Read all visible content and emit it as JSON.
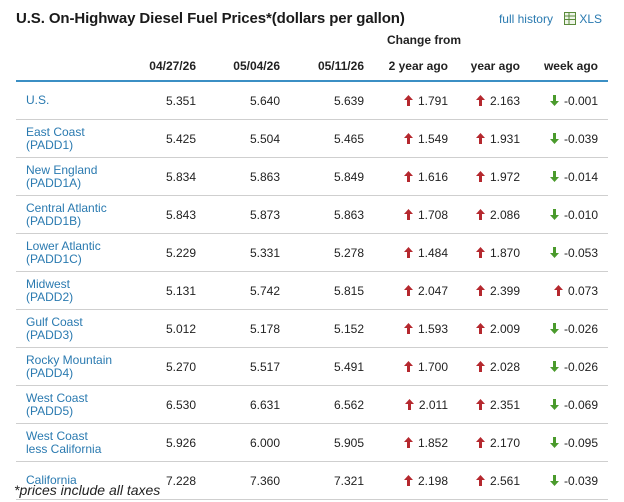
{
  "header": {
    "title": "U.S. On-Highway Diesel Fuel Prices*(dollars per gallon)",
    "full_history_label": "full history",
    "xls_label": "XLS"
  },
  "table": {
    "change_from_label": "Change from",
    "columns": [
      "04/27/26",
      "05/04/26",
      "05/11/26",
      "2 year ago",
      "year ago",
      "week ago"
    ],
    "rows": [
      {
        "region": [
          "U.S."
        ],
        "p1": "5.351",
        "p2": "5.640",
        "p3": "5.639",
        "c2y": "1.791",
        "d2y": "up",
        "c1y": "2.163",
        "d1y": "up",
        "cw": "-0.001",
        "dw": "down"
      },
      {
        "region": [
          "East Coast",
          "(PADD1)"
        ],
        "p1": "5.425",
        "p2": "5.504",
        "p3": "5.465",
        "c2y": "1.549",
        "d2y": "up",
        "c1y": "1.931",
        "d1y": "up",
        "cw": "-0.039",
        "dw": "down"
      },
      {
        "region": [
          "New England",
          "(PADD1A)"
        ],
        "p1": "5.834",
        "p2": "5.863",
        "p3": "5.849",
        "c2y": "1.616",
        "d2y": "up",
        "c1y": "1.972",
        "d1y": "up",
        "cw": "-0.014",
        "dw": "down"
      },
      {
        "region": [
          "Central Atlantic",
          "(PADD1B)"
        ],
        "p1": "5.843",
        "p2": "5.873",
        "p3": "5.863",
        "c2y": "1.708",
        "d2y": "up",
        "c1y": "2.086",
        "d1y": "up",
        "cw": "-0.010",
        "dw": "down"
      },
      {
        "region": [
          "Lower Atlantic",
          "(PADD1C)"
        ],
        "p1": "5.229",
        "p2": "5.331",
        "p3": "5.278",
        "c2y": "1.484",
        "d2y": "up",
        "c1y": "1.870",
        "d1y": "up",
        "cw": "-0.053",
        "dw": "down"
      },
      {
        "region": [
          "Midwest",
          "(PADD2)"
        ],
        "p1": "5.131",
        "p2": "5.742",
        "p3": "5.815",
        "c2y": "2.047",
        "d2y": "up",
        "c1y": "2.399",
        "d1y": "up",
        "cw": "0.073",
        "dw": "up"
      },
      {
        "region": [
          "Gulf Coast",
          "(PADD3)"
        ],
        "p1": "5.012",
        "p2": "5.178",
        "p3": "5.152",
        "c2y": "1.593",
        "d2y": "up",
        "c1y": "2.009",
        "d1y": "up",
        "cw": "-0.026",
        "dw": "down"
      },
      {
        "region": [
          "Rocky Mountain",
          "(PADD4)"
        ],
        "p1": "5.270",
        "p2": "5.517",
        "p3": "5.491",
        "c2y": "1.700",
        "d2y": "up",
        "c1y": "2.028",
        "d1y": "up",
        "cw": "-0.026",
        "dw": "down"
      },
      {
        "region": [
          "West Coast",
          "(PADD5)"
        ],
        "p1": "6.530",
        "p2": "6.631",
        "p3": "6.562",
        "c2y": "2.011",
        "d2y": "up",
        "c1y": "2.351",
        "d1y": "up",
        "cw": "-0.069",
        "dw": "down"
      },
      {
        "region": [
          "West Coast",
          "less California"
        ],
        "p1": "5.926",
        "p2": "6.000",
        "p3": "5.905",
        "c2y": "1.852",
        "d2y": "up",
        "c1y": "2.170",
        "d1y": "up",
        "cw": "-0.095",
        "dw": "down"
      },
      {
        "region": [
          "California"
        ],
        "p1": "7.228",
        "p2": "7.360",
        "p3": "7.321",
        "c2y": "2.198",
        "d2y": "up",
        "c1y": "2.561",
        "d1y": "up",
        "cw": "-0.039",
        "dw": "down"
      }
    ]
  },
  "footnote": "*prices include all taxes",
  "colors": {
    "up": "#b5282e",
    "down": "#4a9a2c",
    "link": "#2a7ab0",
    "rule": "#3b8fc4"
  },
  "icons": {
    "up": "arrow-up-icon",
    "down": "arrow-down-icon",
    "xls": "spreadsheet-icon"
  }
}
